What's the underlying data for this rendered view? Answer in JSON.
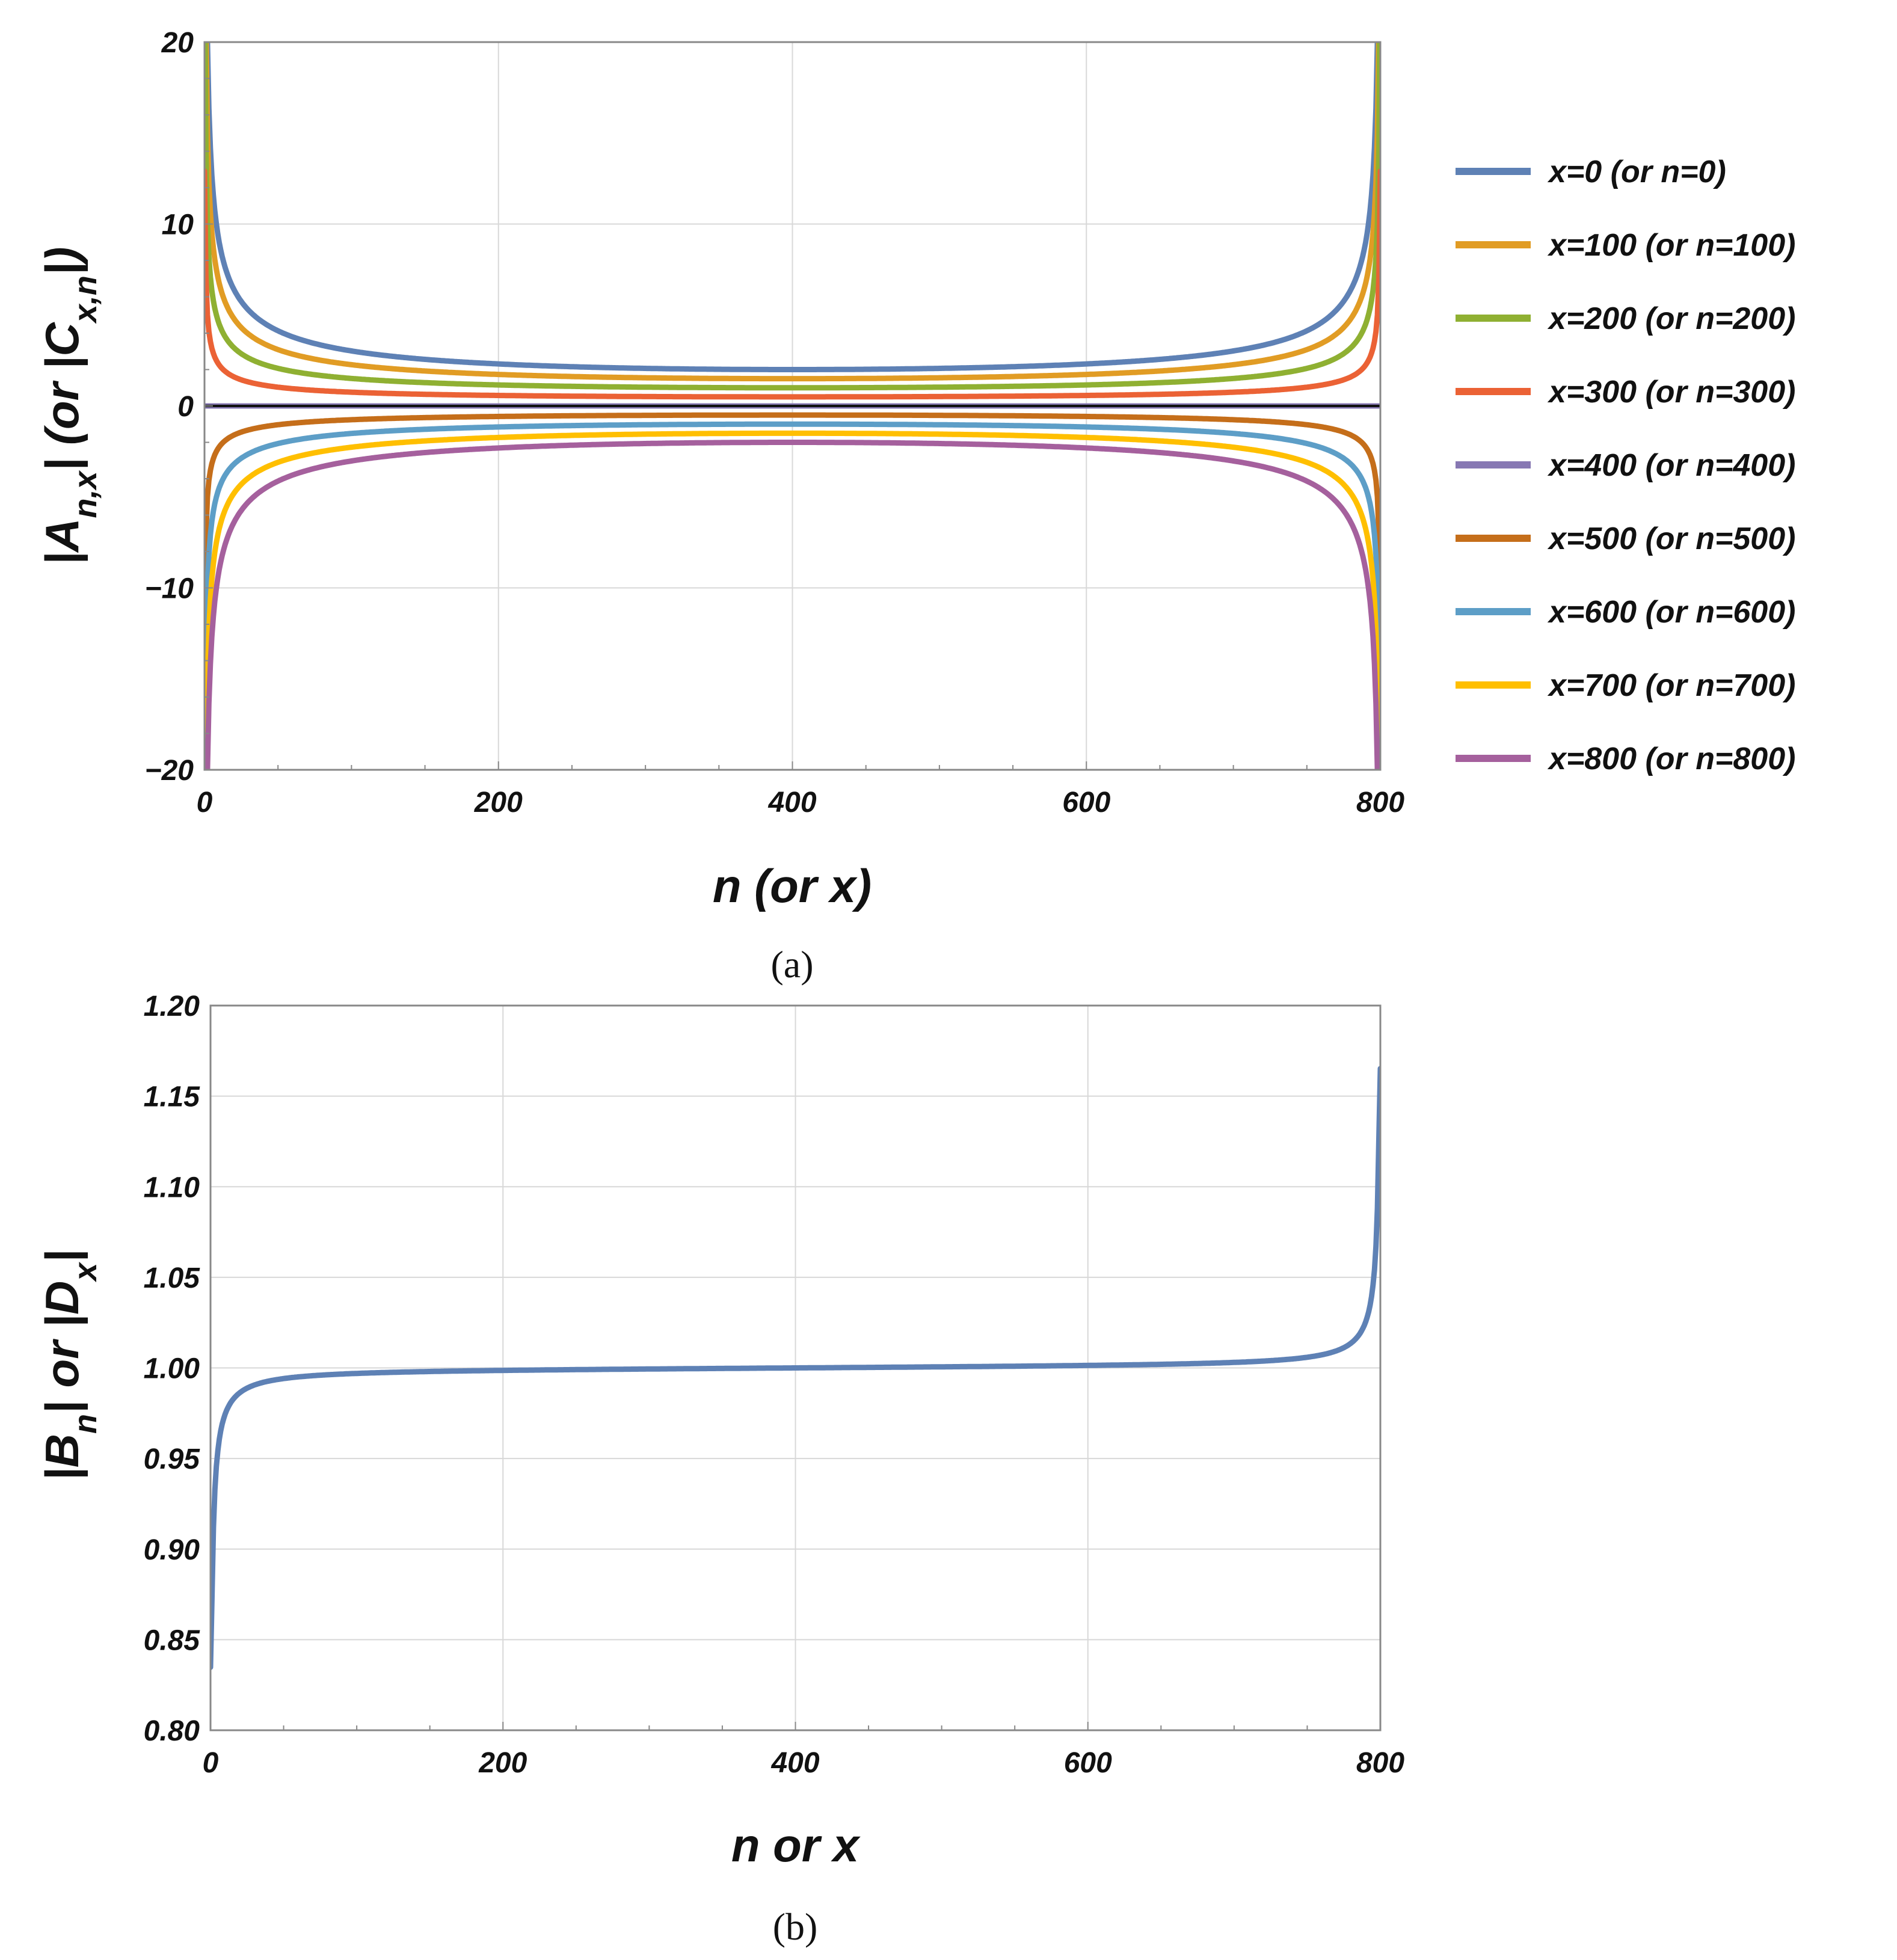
{
  "chart_data": [
    {
      "type": "line",
      "xlabel": "n (or x)",
      "ylabel": "|A",
      "ylabel_sub": "n,x",
      "ylabel_mid": "| (or |C",
      "ylabel_sub2": "x,n",
      "ylabel_end": "|)",
      "xlim": [
        0,
        800
      ],
      "ylim": [
        -20,
        20
      ],
      "xticks": [
        "0",
        "200",
        "400",
        "600",
        "800"
      ],
      "yticks": [
        "20",
        "10",
        "0",
        "−10",
        "−20"
      ],
      "caption": "(a)",
      "series": [
        {
          "name": "x=0 (or n=0)",
          "color": "#5e81b5",
          "center_value": 2.0,
          "sign": 1
        },
        {
          "name": "x=100 (or n=100)",
          "color": "#e19c24",
          "center_value": 1.5,
          "sign": 1
        },
        {
          "name": "x=200 (or n=200)",
          "color": "#8fb032",
          "center_value": 1.0,
          "sign": 1
        },
        {
          "name": "x=300 (or n=300)",
          "color": "#eb6235",
          "center_value": 0.5,
          "sign": 1
        },
        {
          "name": "x=400 (or n=400)",
          "color": "#8778b3",
          "center_value": 0.0,
          "sign": 0
        },
        {
          "name": "x=500 (or n=500)",
          "color": "#c56e1a",
          "center_value": -0.5,
          "sign": -1
        },
        {
          "name": "x=600 (or n=600)",
          "color": "#5d9ec7",
          "center_value": -1.0,
          "sign": -1
        },
        {
          "name": "x=700 (or n=700)",
          "color": "#ffbf00",
          "center_value": -1.5,
          "sign": -1
        },
        {
          "name": "x=800 (or n=800)",
          "color": "#a5609d",
          "center_value": -2.0,
          "sign": -1
        }
      ]
    },
    {
      "type": "line",
      "xlabel": "n or x",
      "ylabel": "|B",
      "ylabel_sub": "n",
      "ylabel_mid": "| or |D",
      "ylabel_sub2": "x",
      "ylabel_end": "|",
      "xlim": [
        0,
        800
      ],
      "ylim": [
        0.8,
        1.2
      ],
      "xticks": [
        "0",
        "200",
        "400",
        "600",
        "800"
      ],
      "yticks": [
        "1.20",
        "1.15",
        "1.10",
        "1.05",
        "1.00",
        "0.95",
        "0.90",
        "0.85",
        "0.80"
      ],
      "caption": "(b)",
      "series": [
        {
          "name": "|Bn| or |Dx|",
          "color": "#5e81b5",
          "center_value": 1.0
        }
      ]
    }
  ]
}
